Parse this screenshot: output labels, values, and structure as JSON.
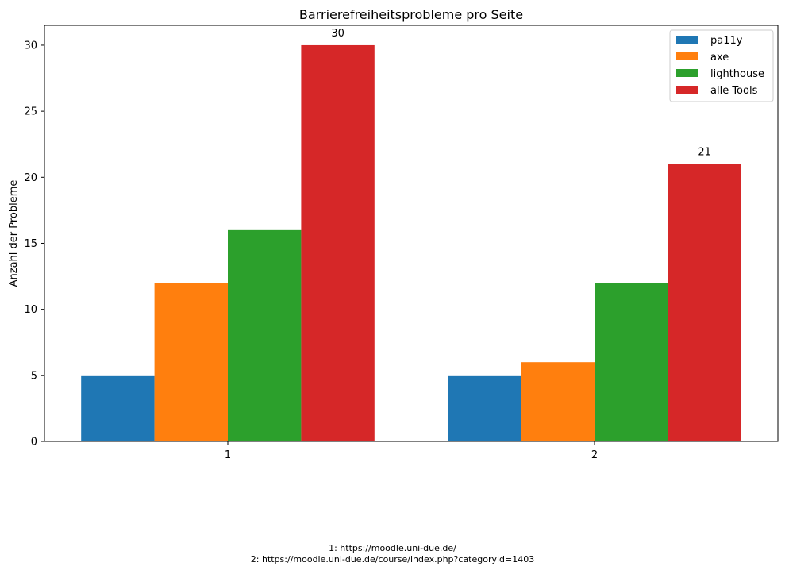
{
  "chart_data": {
    "type": "bar",
    "title": "Barrierefreiheitsprobleme pro Seite",
    "xlabel": "",
    "ylabel": "Anzahl der Probleme",
    "categories": [
      "1",
      "2"
    ],
    "series": [
      {
        "name": "pa11y",
        "values": [
          5,
          5
        ],
        "color": "#1f77b4"
      },
      {
        "name": "axe",
        "values": [
          12,
          6
        ],
        "color": "#ff7f0e"
      },
      {
        "name": "lighthouse",
        "values": [
          16,
          12
        ],
        "color": "#2ca02c"
      },
      {
        "name": "alle Tools",
        "values": [
          30,
          21
        ],
        "color": "#d62728"
      }
    ],
    "data_labels": {
      "series": "alle Tools",
      "values": [
        30,
        21
      ]
    },
    "ylim": [
      0,
      31.5
    ],
    "yticks": [
      0,
      5,
      10,
      15,
      20,
      25,
      30
    ],
    "grid": false,
    "legend": "top-right"
  },
  "footnotes": [
    "1: https://moodle.uni-due.de/",
    "2: https://moodle.uni-due.de/course/index.php?categoryid=1403"
  ]
}
